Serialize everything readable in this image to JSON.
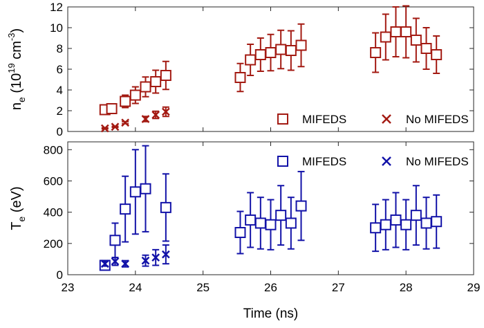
{
  "chart_data": [
    {
      "type": "scatter",
      "panel": "top",
      "ylabel": {
        "base": "n",
        "sub": "e",
        "mid": " (10",
        "sup1": "19",
        "post": " cm",
        "sup2": "-3",
        "end": ")"
      },
      "ylim": [
        0,
        12
      ],
      "yticks": [
        0,
        2,
        4,
        6,
        8,
        10,
        12
      ],
      "xlim": [
        23,
        29
      ],
      "legend_position": "bottom-right",
      "grid": false,
      "color": "#a31a12",
      "series": [
        {
          "name": "MIFEDS",
          "marker": "square",
          "points": [
            {
              "x": 23.55,
              "y": 2.1,
              "err": 0.35
            },
            {
              "x": 23.65,
              "y": 2.2,
              "err": 0.35
            },
            {
              "x": 23.85,
              "y": 2.9,
              "err": 0.6
            },
            {
              "x": 24.0,
              "y": 3.5,
              "err": 0.8
            },
            {
              "x": 24.15,
              "y": 4.3,
              "err": 0.95
            },
            {
              "x": 24.3,
              "y": 4.8,
              "err": 1.1
            },
            {
              "x": 24.45,
              "y": 5.4,
              "err": 1.35
            },
            {
              "x": 25.55,
              "y": 5.2,
              "err": 1.35
            },
            {
              "x": 25.7,
              "y": 6.9,
              "err": 1.5
            },
            {
              "x": 25.85,
              "y": 7.4,
              "err": 1.6
            },
            {
              "x": 26.0,
              "y": 7.6,
              "err": 1.75
            },
            {
              "x": 26.15,
              "y": 7.9,
              "err": 1.85
            },
            {
              "x": 26.3,
              "y": 7.8,
              "err": 1.9
            },
            {
              "x": 26.45,
              "y": 8.3,
              "err": 2.05
            },
            {
              "x": 27.55,
              "y": 7.6,
              "err": 1.9
            },
            {
              "x": 27.7,
              "y": 9.1,
              "err": 2.2
            },
            {
              "x": 27.85,
              "y": 9.6,
              "err": 2.4
            },
            {
              "x": 28.0,
              "y": 9.6,
              "err": 2.5
            },
            {
              "x": 28.15,
              "y": 8.8,
              "err": 2.1
            },
            {
              "x": 28.3,
              "y": 8.0,
              "err": 2.0
            },
            {
              "x": 28.45,
              "y": 7.4,
              "err": 1.8
            }
          ]
        },
        {
          "name": "No MIFEDS",
          "marker": "x",
          "points": [
            {
              "x": 23.55,
              "y": 0.3,
              "err": 0.05
            },
            {
              "x": 23.7,
              "y": 0.45,
              "err": 0.05
            },
            {
              "x": 23.85,
              "y": 0.85,
              "err": 0.1
            },
            {
              "x": 24.15,
              "y": 1.2,
              "err": 0.25
            },
            {
              "x": 24.3,
              "y": 1.6,
              "err": 0.35
            },
            {
              "x": 24.45,
              "y": 1.9,
              "err": 0.45
            }
          ]
        }
      ]
    },
    {
      "type": "scatter",
      "panel": "bottom",
      "ylabel": {
        "base": "T",
        "sub": "e",
        "end": " (eV)"
      },
      "xlabel": "Time (ns)",
      "ylim": [
        0,
        850
      ],
      "yticks": [
        0,
        200,
        400,
        600,
        800
      ],
      "xlim": [
        23,
        29
      ],
      "xticks": [
        23,
        24,
        25,
        26,
        27,
        28,
        29
      ],
      "legend_position": "top-right",
      "grid": false,
      "color": "#1212a8",
      "series": [
        {
          "name": "MIFEDS",
          "marker": "square",
          "points": [
            {
              "x": 23.55,
              "y": 60,
              "err": 15
            },
            {
              "x": 23.7,
              "y": 220,
              "err": 110
            },
            {
              "x": 23.85,
              "y": 420,
              "err": 210
            },
            {
              "x": 24.0,
              "y": 530,
              "err": 270
            },
            {
              "x": 24.15,
              "y": 550,
              "err": 275
            },
            {
              "x": 24.45,
              "y": 430,
              "err": 215
            },
            {
              "x": 25.55,
              "y": 270,
              "err": 135
            },
            {
              "x": 25.7,
              "y": 350,
              "err": 175
            },
            {
              "x": 25.85,
              "y": 330,
              "err": 165
            },
            {
              "x": 26.0,
              "y": 320,
              "err": 160
            },
            {
              "x": 26.15,
              "y": 380,
              "err": 190
            },
            {
              "x": 26.3,
              "y": 330,
              "err": 165
            },
            {
              "x": 26.45,
              "y": 440,
              "err": 220
            },
            {
              "x": 27.55,
              "y": 300,
              "err": 150
            },
            {
              "x": 27.7,
              "y": 320,
              "err": 160
            },
            {
              "x": 27.85,
              "y": 350,
              "err": 175
            },
            {
              "x": 28.0,
              "y": 320,
              "err": 160
            },
            {
              "x": 28.15,
              "y": 380,
              "err": 190
            },
            {
              "x": 28.3,
              "y": 330,
              "err": 165
            },
            {
              "x": 28.45,
              "y": 340,
              "err": 170
            }
          ]
        },
        {
          "name": "No MIFEDS",
          "marker": "x",
          "points": [
            {
              "x": 23.55,
              "y": 70,
              "err": 15
            },
            {
              "x": 23.7,
              "y": 85,
              "err": 25
            },
            {
              "x": 23.85,
              "y": 70,
              "err": 20
            },
            {
              "x": 24.15,
              "y": 90,
              "err": 35
            },
            {
              "x": 24.3,
              "y": 110,
              "err": 50
            },
            {
              "x": 24.45,
              "y": 130,
              "err": 60
            }
          ]
        }
      ]
    }
  ]
}
